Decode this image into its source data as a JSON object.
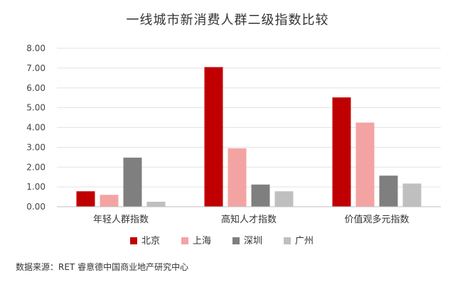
{
  "chart_data": {
    "type": "bar",
    "title": "一线城市新消费人群二级指数比较",
    "categories": [
      "年轻人群指数",
      "高知人才指数",
      "价值观多元指数"
    ],
    "series": [
      {
        "name": "北京",
        "color": "#c00000",
        "values": [
          0.78,
          7.05,
          5.52
        ]
      },
      {
        "name": "上海",
        "color": "#f4a3a3",
        "values": [
          0.6,
          2.95,
          4.25
        ]
      },
      {
        "name": "深圳",
        "color": "#7f7f7f",
        "values": [
          2.48,
          1.12,
          1.57
        ]
      },
      {
        "name": "广州",
        "color": "#bfbfbf",
        "values": [
          0.25,
          0.78,
          1.17
        ]
      }
    ],
    "ylim": [
      0,
      8
    ],
    "yticks": [
      "0.00",
      "1.00",
      "2.00",
      "3.00",
      "4.00",
      "5.00",
      "6.00",
      "7.00",
      "8.00"
    ],
    "grid": true,
    "legend_position": "bottom"
  },
  "source_note": "数据来源：RET 睿意德中国商业地产研究中心"
}
